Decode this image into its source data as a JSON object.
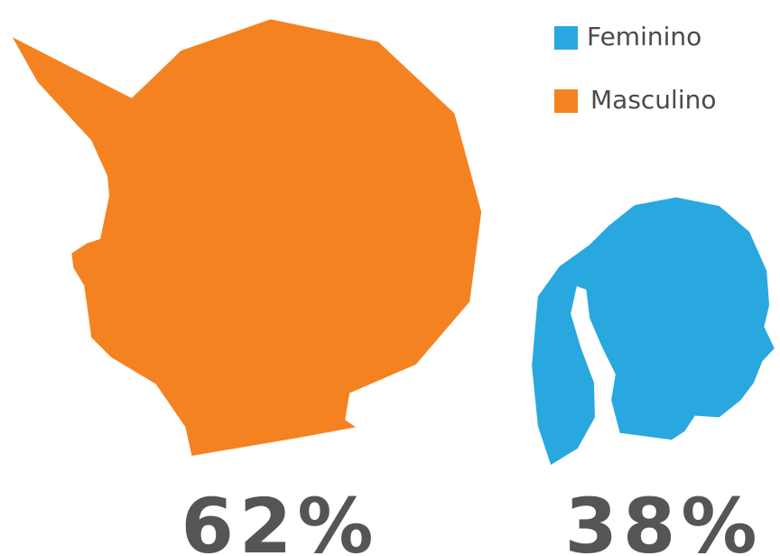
{
  "chart_data": {
    "type": "pictogram",
    "categories": [
      "Masculino",
      "Feminino"
    ],
    "values": [
      62,
      38
    ],
    "value_labels": [
      "62%",
      "38%"
    ],
    "colors": [
      "#f58220",
      "#29a8e0"
    ]
  }
}
